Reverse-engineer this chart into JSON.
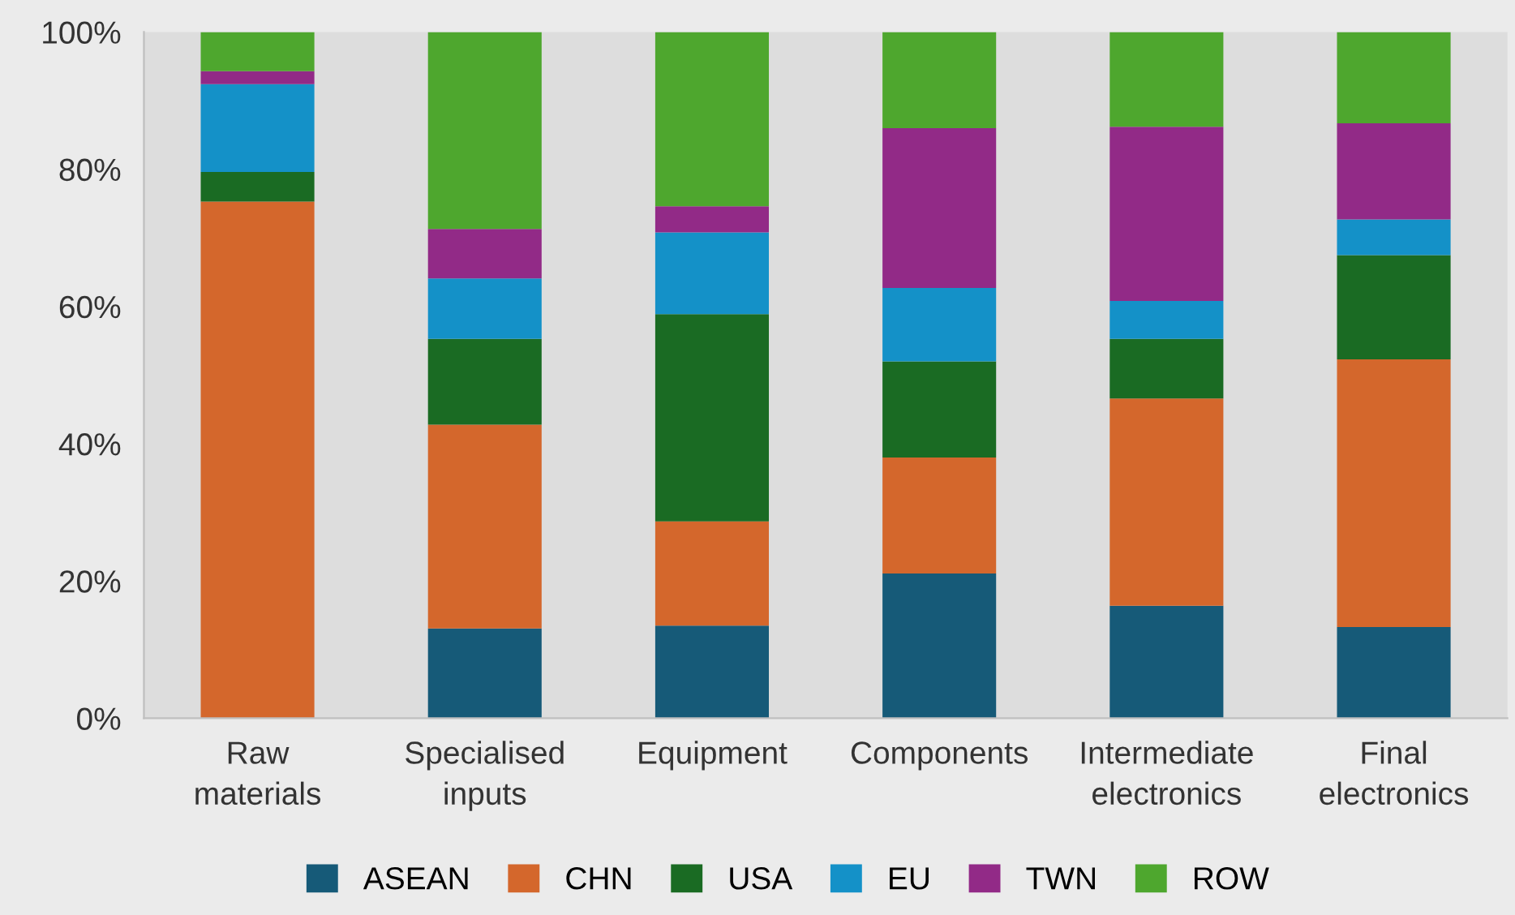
{
  "chart_data": {
    "type": "bar",
    "stacked": true,
    "categories": [
      "Raw\nmaterials",
      "Specialised\ninputs",
      "Equipment",
      "Components",
      "Intermediate\nelectronics",
      "Final\nelectronics"
    ],
    "series": [
      {
        "name": "ASEAN",
        "color": "#165a78",
        "values": [
          0,
          13.1,
          13.5,
          21.1,
          16.4,
          13.3
        ]
      },
      {
        "name": "CHN",
        "color": "#d4672c",
        "values": [
          75.3,
          29.7,
          15.2,
          16.9,
          30.2,
          39.0
        ]
      },
      {
        "name": "USA",
        "color": "#1a6b23",
        "values": [
          4.3,
          12.5,
          30.2,
          14.0,
          8.7,
          15.2
        ]
      },
      {
        "name": "EU",
        "color": "#1491c8",
        "values": [
          12.8,
          8.8,
          11.9,
          10.7,
          5.5,
          5.2
        ]
      },
      {
        "name": "TWN",
        "color": "#922a87",
        "values": [
          1.9,
          7.2,
          3.8,
          23.3,
          25.4,
          14.0
        ]
      },
      {
        "name": "ROW",
        "color": "#4ea72e",
        "values": [
          5.7,
          28.7,
          25.4,
          14.0,
          13.8,
          13.3
        ]
      }
    ],
    "ylim": [
      0,
      100
    ],
    "yticks": [
      {
        "value": 0,
        "label": "0%"
      },
      {
        "value": 20,
        "label": "20%"
      },
      {
        "value": 40,
        "label": "40%"
      },
      {
        "value": 60,
        "label": "60%"
      },
      {
        "value": 80,
        "label": "80%"
      },
      {
        "value": 100,
        "label": "100%"
      }
    ],
    "grid": false,
    "legend": "bottom"
  }
}
